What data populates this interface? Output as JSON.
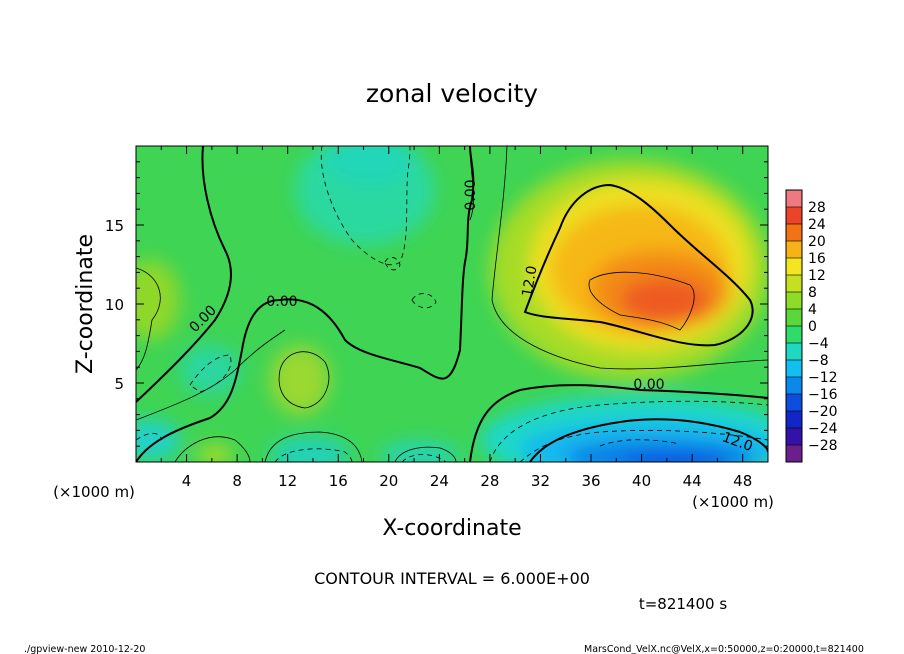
{
  "chart_data": {
    "type": "heatmap",
    "title": "zonal velocity",
    "xlabel": "X-coordinate",
    "ylabel": "Z-coordinate",
    "x_unit_left": "(×1000 m)",
    "x_unit_right": "(×1000 m)",
    "xlim": [
      0,
      50
    ],
    "ylim": [
      0,
      20
    ],
    "x_ticks": [
      4,
      8,
      12,
      16,
      20,
      24,
      28,
      32,
      36,
      40,
      44,
      48
    ],
    "x_tick_labels": [
      "4",
      "8",
      "12",
      "16",
      "20",
      "24",
      "28",
      "32",
      "36",
      "40",
      "44",
      "48"
    ],
    "y_ticks": [
      5,
      10,
      15
    ],
    "y_tick_labels": [
      "5",
      "10",
      "15"
    ],
    "colorbar": {
      "levels": [
        -30,
        -28,
        -24,
        -20,
        -16,
        -12,
        -8,
        -4,
        0,
        4,
        8,
        12,
        16,
        20,
        24,
        28,
        30
      ],
      "labels": [
        "28",
        "24",
        "20",
        "16",
        "12",
        "8",
        "4",
        "0",
        "−4",
        "−8",
        "−12",
        "−16",
        "−20",
        "−24",
        "−28"
      ],
      "colors": [
        "#6a1f8a",
        "#3412a8",
        "#1226c8",
        "#0c4ee0",
        "#0a88ec",
        "#12bff0",
        "#1ed8c0",
        "#2fdc6a",
        "#5ad83a",
        "#8fdc28",
        "#c5e020",
        "#f2e620",
        "#f6b216",
        "#f27214",
        "#ec4428",
        "#f07880"
      ]
    },
    "contour_labels": [
      "0.00",
      "0.00",
      "0.00",
      "0.00",
      "12.0",
      "12.0"
    ],
    "contour_interval_text": "CONTOUR INTERVAL = 6.000E+00",
    "time_text": "t=821400 s",
    "footer_left": "./gpview-new  2010-12-20",
    "footer_right": "MarsCond_VelX.nc@VelX,x=0:50000,z=0:20000,t=821400"
  }
}
